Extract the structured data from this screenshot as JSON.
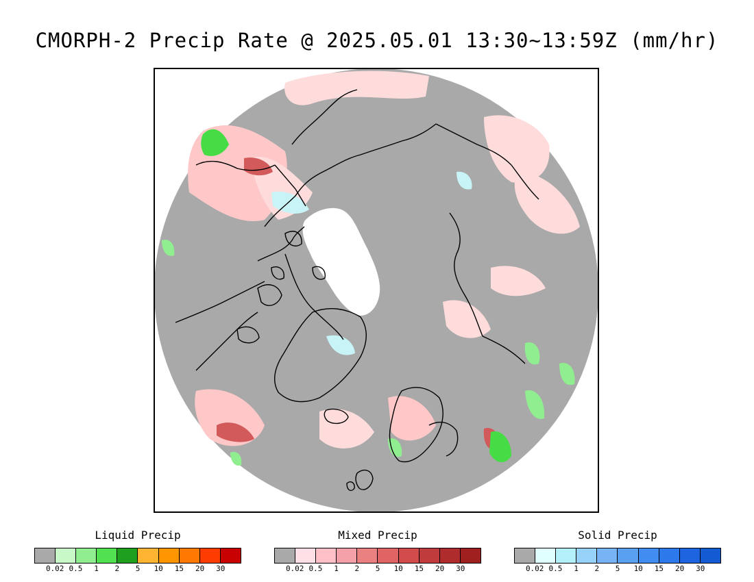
{
  "title": "CMORPH-2 Precip Rate @ 2025.05.01 13:30~13:59Z (mm/hr)",
  "map": {
    "projection": "north-polar-stereographic",
    "colors": {
      "no_precip": "#a9a9a9",
      "background": "#ffffff",
      "coastline": "#000000",
      "sea_ice": "#ffffff",
      "light_mixed": "#ffdcdc",
      "mixed": "#ffc0c0",
      "heavy_mixed": "#d25050",
      "light_liquid": "#90ee90",
      "liquid": "#46dc46",
      "light_solid": "#c8f4f8"
    }
  },
  "legends": [
    {
      "title": "Liquid Precip",
      "colors": [
        "#a9a9a9",
        "#c8f8c8",
        "#90ee90",
        "#50e050",
        "#1ea01e",
        "#ffb432",
        "#ff9600",
        "#ff7800",
        "#ff3c00",
        "#c80000"
      ],
      "labels": [
        "0.02",
        "0.5",
        "1",
        "2",
        "5",
        "10",
        "15",
        "20",
        "30"
      ]
    },
    {
      "title": "Mixed Precip",
      "colors": [
        "#a9a9a9",
        "#ffe0e6",
        "#ffc0c8",
        "#f4a0a8",
        "#ea8080",
        "#e06464",
        "#d24c4c",
        "#c03c3c",
        "#ae2c2c",
        "#a02020"
      ],
      "labels": [
        "0.02",
        "0.5",
        "1",
        "2",
        "5",
        "10",
        "15",
        "20",
        "30"
      ]
    },
    {
      "title": "Solid Precip",
      "colors": [
        "#a9a9a9",
        "#e0ffff",
        "#b4f0fa",
        "#96d2fa",
        "#78b4f5",
        "#5aa0f0",
        "#418cf0",
        "#2d78eb",
        "#1e64e1",
        "#145ad2"
      ],
      "labels": [
        "0.02",
        "0.5",
        "1",
        "2",
        "5",
        "10",
        "15",
        "20",
        "30"
      ]
    }
  ]
}
